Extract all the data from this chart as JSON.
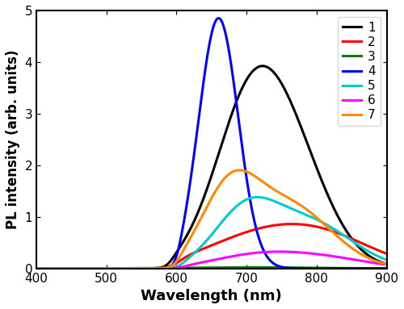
{
  "title": "",
  "xlabel": "Wavelength (nm)",
  "ylabel": "PL intensity (arb. units)",
  "xlim": [
    400,
    900
  ],
  "ylim": [
    0,
    5
  ],
  "yticks": [
    0,
    1,
    2,
    3,
    4,
    5
  ],
  "xticks": [
    400,
    500,
    600,
    700,
    800,
    900
  ],
  "curves": {
    "1": {
      "color": "#000000",
      "linewidth": 2.2
    },
    "2": {
      "color": "#ff0000",
      "linewidth": 2.2
    },
    "3": {
      "color": "#008000",
      "linewidth": 2.2
    },
    "4": {
      "color": "#0000ff",
      "linewidth": 2.2
    },
    "5": {
      "color": "#00cccc",
      "linewidth": 2.2
    },
    "6": {
      "color": "#ff00ff",
      "linewidth": 2.2
    },
    "7": {
      "color": "#ff8800",
      "linewidth": 2.2
    }
  },
  "legend_loc": "upper right",
  "figsize": [
    5.0,
    3.83
  ],
  "dpi": 100
}
